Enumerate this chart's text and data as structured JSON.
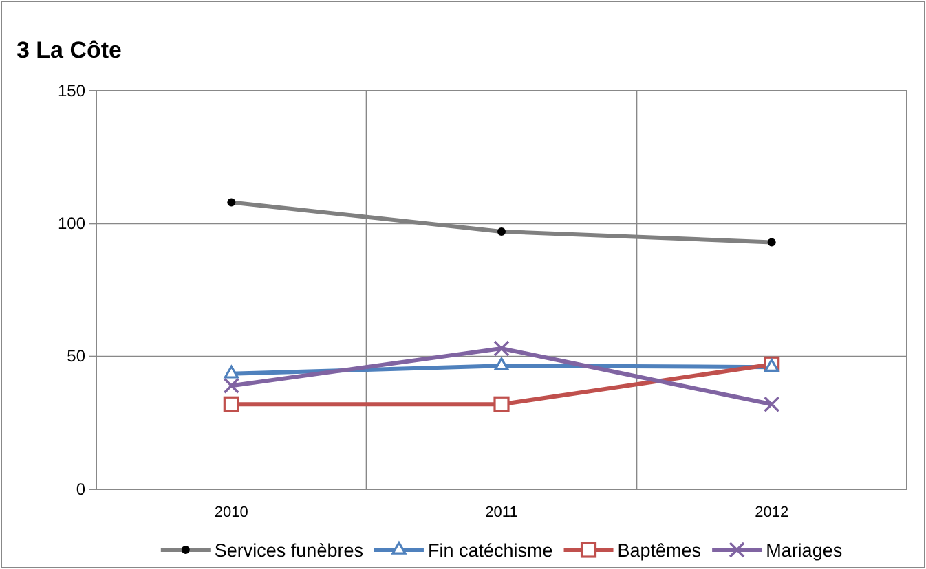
{
  "chart_data": {
    "type": "line",
    "title": "3 La Côte",
    "categories": [
      "2010",
      "2011",
      "2012"
    ],
    "series": [
      {
        "name": "Services funèbres",
        "color": "#808080",
        "marker": "circle",
        "values": [
          108,
          97,
          93
        ]
      },
      {
        "name": "Fin catéchisme",
        "color": "#4f81bd",
        "marker": "triangle",
        "values": [
          43.5,
          46.5,
          46
        ]
      },
      {
        "name": "Baptêmes",
        "color": "#c0504d",
        "marker": "square",
        "values": [
          32,
          32,
          47
        ]
      },
      {
        "name": "Mariages",
        "color": "#8064a2",
        "marker": "cross",
        "values": [
          39,
          53,
          32
        ]
      }
    ],
    "ylim": [
      0,
      150
    ],
    "yticks": [
      0,
      50,
      100,
      150
    ],
    "grid": true,
    "legend": "bottom"
  }
}
